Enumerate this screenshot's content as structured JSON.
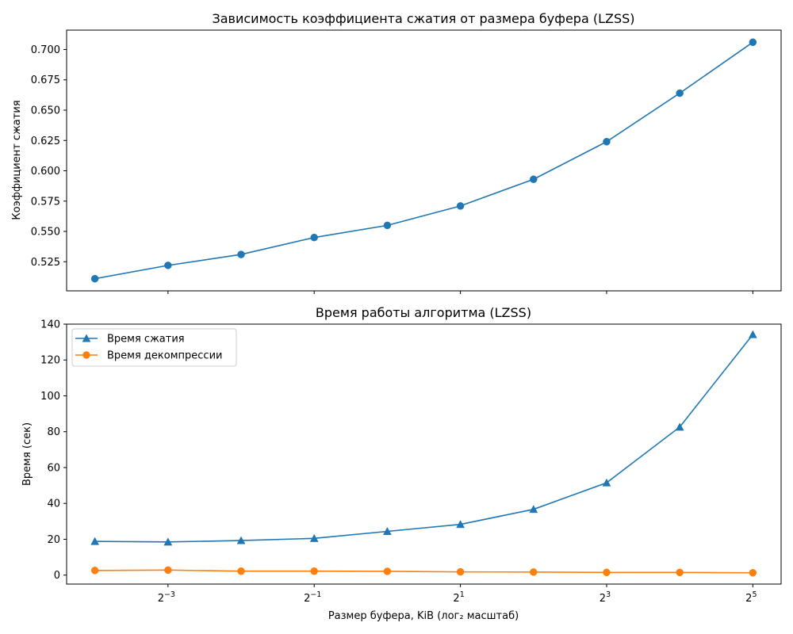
{
  "chart_data": [
    {
      "type": "line",
      "title": "Зависимость коэффициента сжатия от размера буфера (LZSS)",
      "xlabel": "",
      "ylabel": "Коэффициент сжатия",
      "xscale": "log2",
      "x": [
        0.0625,
        0.125,
        0.25,
        0.5,
        1,
        2,
        4,
        8,
        16,
        32
      ],
      "series": [
        {
          "values": [
            0.511,
            0.522,
            0.531,
            0.545,
            0.555,
            0.571,
            0.593,
            0.624,
            0.664,
            0.706
          ],
          "color": "#1f77b4",
          "marker": "circle"
        }
      ],
      "ylim": [
        0.501,
        0.716
      ],
      "yticks": [
        "0.525",
        "0.550",
        "0.575",
        "0.600",
        "0.625",
        "0.650",
        "0.675",
        "0.700"
      ],
      "ytick_values": [
        0.525,
        0.55,
        0.575,
        0.6,
        0.625,
        0.65,
        0.675,
        0.7
      ],
      "grid": false,
      "legend": null
    },
    {
      "type": "line",
      "title": "Время работы алгоритма (LZSS)",
      "xlabel": "Размер буфера, KiB (лог₂ масштаб)",
      "ylabel": "Время (сек)",
      "xscale": "log2",
      "x": [
        0.0625,
        0.125,
        0.25,
        0.5,
        1,
        2,
        4,
        8,
        16,
        32
      ],
      "xticks": [
        {
          "value": 0.125,
          "base": "2",
          "exp": "−3"
        },
        {
          "value": 0.5,
          "base": "2",
          "exp": "−1"
        },
        {
          "value": 2,
          "base": "2",
          "exp": "1"
        },
        {
          "value": 8,
          "base": "2",
          "exp": "3"
        },
        {
          "value": 32,
          "base": "2",
          "exp": "5"
        }
      ],
      "series": [
        {
          "name": "Время сжатия",
          "values": [
            18.8,
            18.5,
            19.3,
            20.5,
            24.4,
            28.3,
            36.7,
            51.5,
            82.6,
            134.2
          ],
          "color": "#1f77b4",
          "marker": "triangle"
        },
        {
          "name": "Время декомпрессии",
          "values": [
            2.6,
            2.8,
            2.2,
            2.2,
            2.1,
            1.8,
            1.7,
            1.5,
            1.5,
            1.3
          ],
          "color": "#ff7f0e",
          "marker": "circle"
        }
      ],
      "ylim": [
        -5,
        140
      ],
      "yticks": [
        "0",
        "20",
        "40",
        "60",
        "80",
        "100",
        "120",
        "140"
      ],
      "ytick_values": [
        0,
        20,
        40,
        60,
        80,
        100,
        120,
        140
      ],
      "grid": false,
      "legend": "upper left"
    }
  ]
}
